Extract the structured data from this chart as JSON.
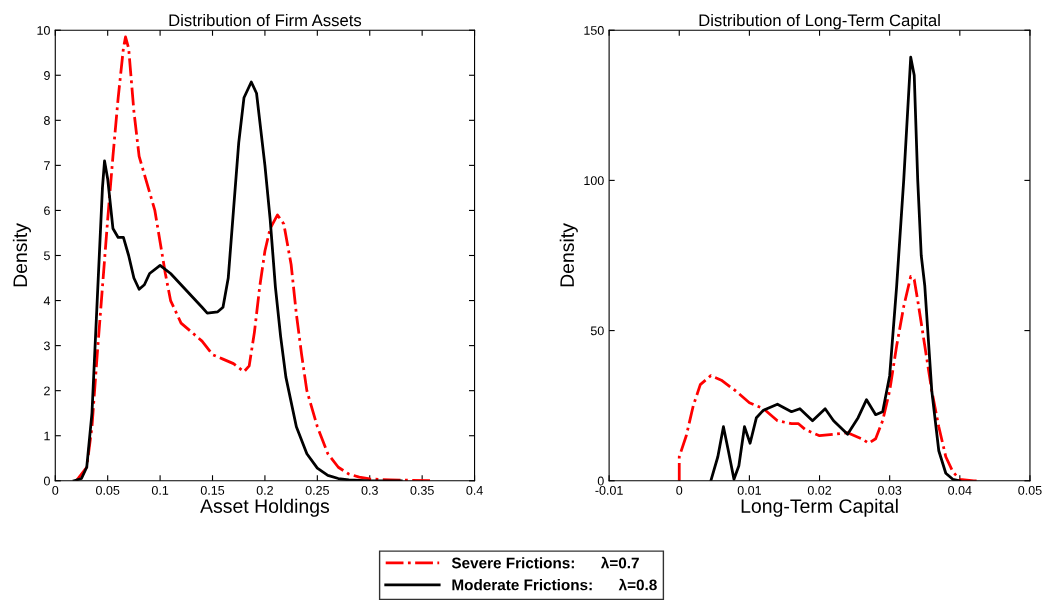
{
  "chart_data": [
    {
      "type": "line",
      "title": "Distribution of Firm Assets",
      "xlabel": "Asset Holdings",
      "ylabel": "Density",
      "xlim": [
        0,
        0.4
      ],
      "xticks": [
        0,
        0.05,
        0.1,
        0.15,
        0.2,
        0.25,
        0.3,
        0.35,
        0.4
      ],
      "ylim": [
        0,
        10
      ],
      "yticks": [
        0,
        1,
        2,
        3,
        4,
        5,
        6,
        7,
        8,
        9,
        10
      ],
      "grid": false,
      "legend": "bottom",
      "series": [
        {
          "name": "Severe Frictions:      λ=0.7",
          "color": "#ff0000",
          "line_style": "dashdot",
          "x": [
            0.02,
            0.03,
            0.035,
            0.04,
            0.045,
            0.05,
            0.055,
            0.06,
            0.065,
            0.067,
            0.07,
            0.075,
            0.08,
            0.085,
            0.09,
            0.095,
            0.1,
            0.105,
            0.11,
            0.12,
            0.13,
            0.14,
            0.15,
            0.16,
            0.17,
            0.18,
            0.185,
            0.19,
            0.195,
            0.2,
            0.205,
            0.212,
            0.218,
            0.225,
            0.23,
            0.235,
            0.24,
            0.25,
            0.26,
            0.27,
            0.28,
            0.29,
            0.3,
            0.32,
            0.36
          ],
          "values": [
            0,
            0.3,
            1.2,
            2.8,
            4.3,
            5.8,
            7.2,
            8.5,
            9.6,
            9.85,
            9.6,
            8.2,
            7.2,
            6.8,
            6.4,
            6.0,
            5.3,
            4.6,
            4.0,
            3.5,
            3.3,
            3.1,
            2.8,
            2.7,
            2.6,
            2.42,
            2.55,
            3.3,
            4.3,
            5.1,
            5.6,
            5.9,
            5.7,
            4.8,
            3.7,
            2.8,
            2.0,
            1.2,
            0.6,
            0.3,
            0.15,
            0.08,
            0.04,
            0.02,
            0
          ]
        },
        {
          "name": "Moderate Frictions:      λ=0.8",
          "color": "#000000",
          "line_style": "solid",
          "x": [
            0.018,
            0.025,
            0.03,
            0.035,
            0.04,
            0.045,
            0.047,
            0.05,
            0.055,
            0.06,
            0.065,
            0.07,
            0.075,
            0.08,
            0.085,
            0.09,
            0.1,
            0.11,
            0.12,
            0.13,
            0.14,
            0.145,
            0.155,
            0.16,
            0.165,
            0.17,
            0.175,
            0.18,
            0.187,
            0.192,
            0.2,
            0.205,
            0.21,
            0.215,
            0.22,
            0.23,
            0.24,
            0.25,
            0.26,
            0.27,
            0.28,
            0.3,
            0.33
          ],
          "values": [
            0,
            0.05,
            0.3,
            1.5,
            4,
            6.5,
            7.1,
            6.7,
            5.6,
            5.4,
            5.4,
            5.0,
            4.5,
            4.25,
            4.35,
            4.6,
            4.78,
            4.6,
            4.35,
            4.1,
            3.85,
            3.72,
            3.75,
            3.85,
            4.5,
            6,
            7.5,
            8.5,
            8.85,
            8.6,
            7.0,
            5.8,
            4.3,
            3.2,
            2.3,
            1.2,
            0.6,
            0.28,
            0.12,
            0.05,
            0.02,
            0,
            0
          ]
        }
      ]
    },
    {
      "type": "line",
      "title": "Distribution of Long-Term Capital",
      "xlabel": "Long-Term Capital",
      "ylabel": "Density",
      "xlim": [
        -0.01,
        0.05
      ],
      "xticks": [
        -0.01,
        0,
        0.01,
        0.02,
        0.03,
        0.04,
        0.05
      ],
      "ylim": [
        0,
        150
      ],
      "yticks": [
        0,
        50,
        100,
        150
      ],
      "grid": false,
      "series": [
        {
          "name": "Severe Frictions:      λ=0.7",
          "color": "#ff0000",
          "line_style": "dashdot",
          "x": [
            0,
            0,
            0.001,
            0.002,
            0.003,
            0.0045,
            0.006,
            0.008,
            0.01,
            0.012,
            0.014,
            0.016,
            0.017,
            0.018,
            0.02,
            0.022,
            0.024,
            0.026,
            0.027,
            0.028,
            0.029,
            0.03,
            0.031,
            0.032,
            0.033,
            0.0335,
            0.034,
            0.035,
            0.036,
            0.037,
            0.038,
            0.039,
            0.04,
            0.042,
            0.043
          ],
          "values": [
            0,
            8,
            15,
            25,
            32,
            35,
            33.5,
            30,
            26,
            24,
            20,
            19,
            19,
            17,
            15,
            15.5,
            16,
            14,
            12.5,
            14,
            20,
            30,
            45,
            58,
            68,
            67,
            60,
            45,
            30,
            18,
            8,
            3,
            0.5,
            0,
            0
          ]
        },
        {
          "name": "Moderate Frictions:      λ=0.8",
          "color": "#000000",
          "line_style": "solid",
          "x": [
            0.0045,
            0.0055,
            0.0063,
            0.007,
            0.0078,
            0.0085,
            0.0093,
            0.0101,
            0.011,
            0.012,
            0.014,
            0.016,
            0.0172,
            0.019,
            0.0208,
            0.022,
            0.024,
            0.0255,
            0.0267,
            0.028,
            0.029,
            0.03,
            0.031,
            0.032,
            0.033,
            0.0335,
            0.034,
            0.0345,
            0.035,
            0.036,
            0.037,
            0.038,
            0.039,
            0.04
          ],
          "values": [
            0,
            8,
            18,
            10,
            0.5,
            5,
            18,
            12.5,
            21,
            23.5,
            25.5,
            23,
            24,
            20,
            24,
            20,
            15.5,
            21,
            27,
            22,
            23,
            35,
            65,
            100,
            141,
            135,
            100,
            75,
            65,
            30,
            10,
            2.5,
            0.5,
            0
          ]
        }
      ]
    }
  ]
}
